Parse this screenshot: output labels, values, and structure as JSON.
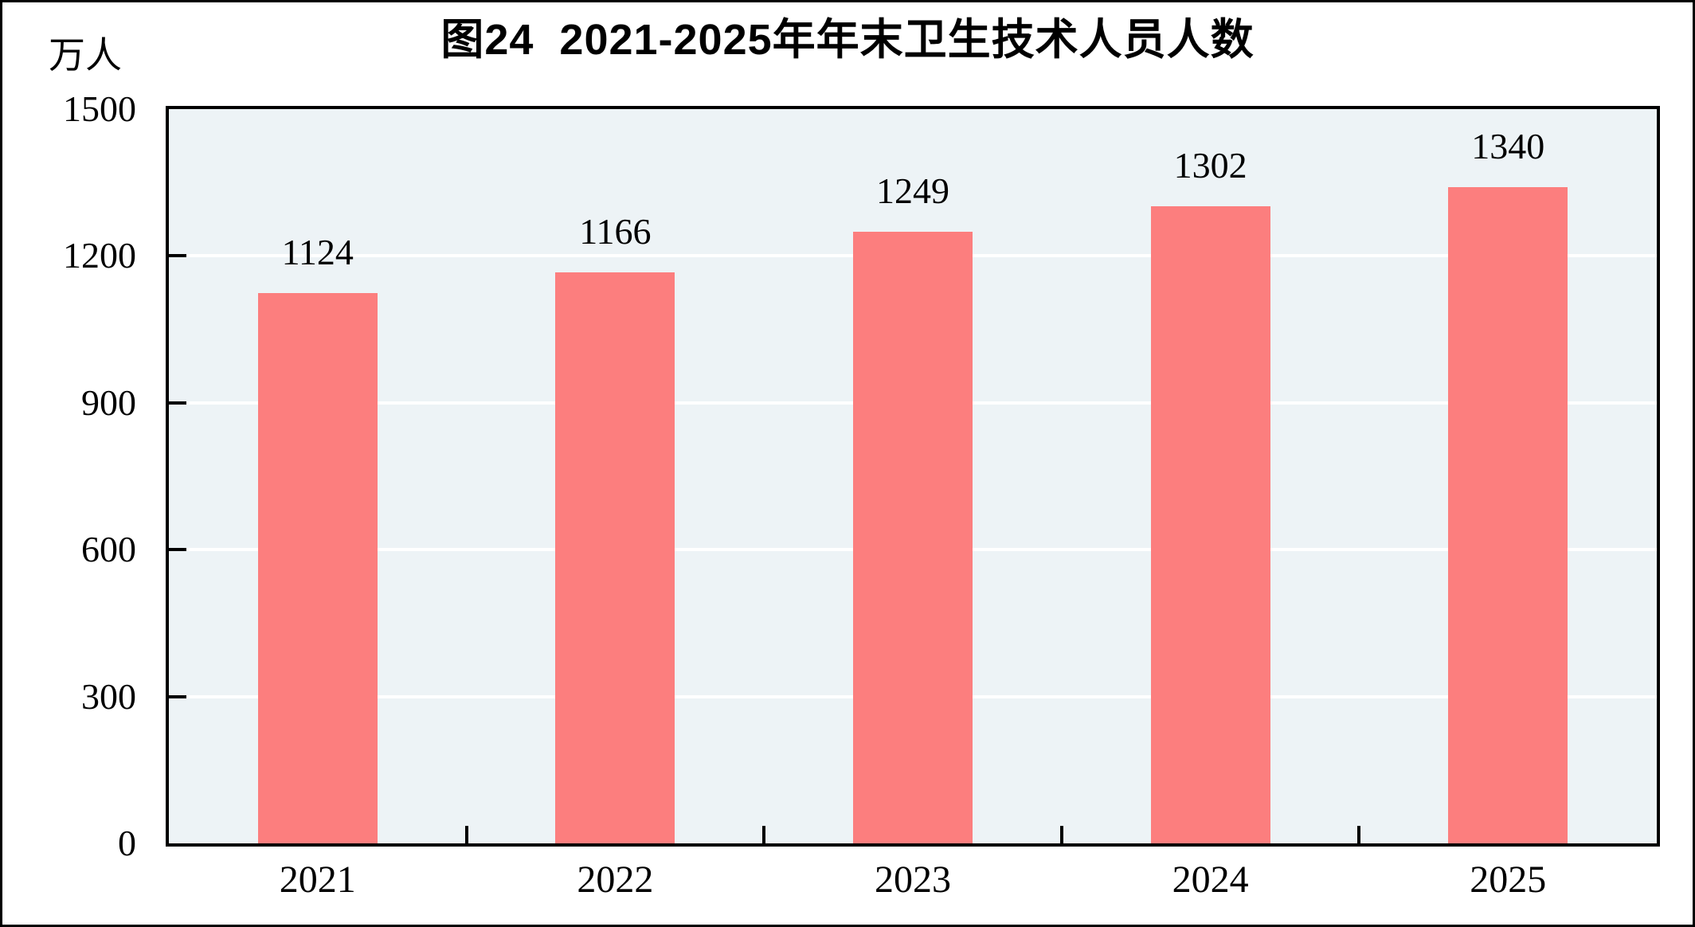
{
  "chart_data": {
    "type": "bar",
    "title": "图24  2021-2025年年末卫生技术人员人数",
    "unit_label": "万人",
    "categories": [
      "2021",
      "2022",
      "2023",
      "2024",
      "2025"
    ],
    "values": [
      1124,
      1166,
      1249,
      1302,
      1340
    ],
    "data_labels": [
      "1124",
      "1166",
      "1249",
      "1302",
      "1340"
    ],
    "xlabel": "",
    "ylabel": "万人",
    "ylim": [
      0,
      1500
    ],
    "yticks": [
      0,
      300,
      600,
      900,
      1200,
      1500
    ],
    "gridline_values": [
      300,
      600,
      900,
      1200
    ],
    "grid": true,
    "legend": false,
    "colors": {
      "bar": "#FC7E7E",
      "plot_background": "#EDF3F6",
      "gridline": "#FFFFFF",
      "axis": "#000000",
      "text": "#000000"
    }
  }
}
